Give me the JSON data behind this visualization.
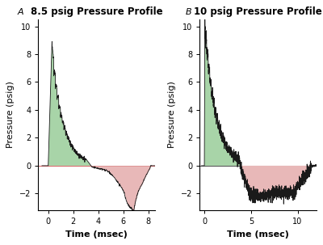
{
  "panel_A": {
    "title": "8.5 psig Pressure Profile",
    "label": "A",
    "xlabel": "Time (msec)",
    "ylabel": "Pressure (psig)",
    "xlim": [
      -0.8,
      8.5
    ],
    "ylim": [
      -3.2,
      10.5
    ],
    "xticks": [
      0,
      2,
      4,
      6,
      8
    ],
    "yticks": [
      -2,
      0,
      2,
      4,
      6,
      8,
      10
    ]
  },
  "panel_B": {
    "title": "10 psig Pressure Profile",
    "label": "B",
    "xlabel": "Time (msec)",
    "ylabel": "Pressure (psig)",
    "xlim": [
      -0.5,
      12.0
    ],
    "ylim": [
      -3.2,
      10.5
    ],
    "xticks": [
      0,
      5,
      10
    ],
    "yticks": [
      -2,
      0,
      2,
      4,
      6,
      8,
      10
    ]
  },
  "green_fill_color": "#a8d4a8",
  "pink_fill_color": "#e8b8b8",
  "line_color": "#1a1a1a",
  "background_color": "#ffffff",
  "zero_line_color": "#cc4444",
  "title_fontsize": 8.5,
  "label_fontsize": 8,
  "tick_fontsize": 7,
  "axis_label_fontsize": 8
}
